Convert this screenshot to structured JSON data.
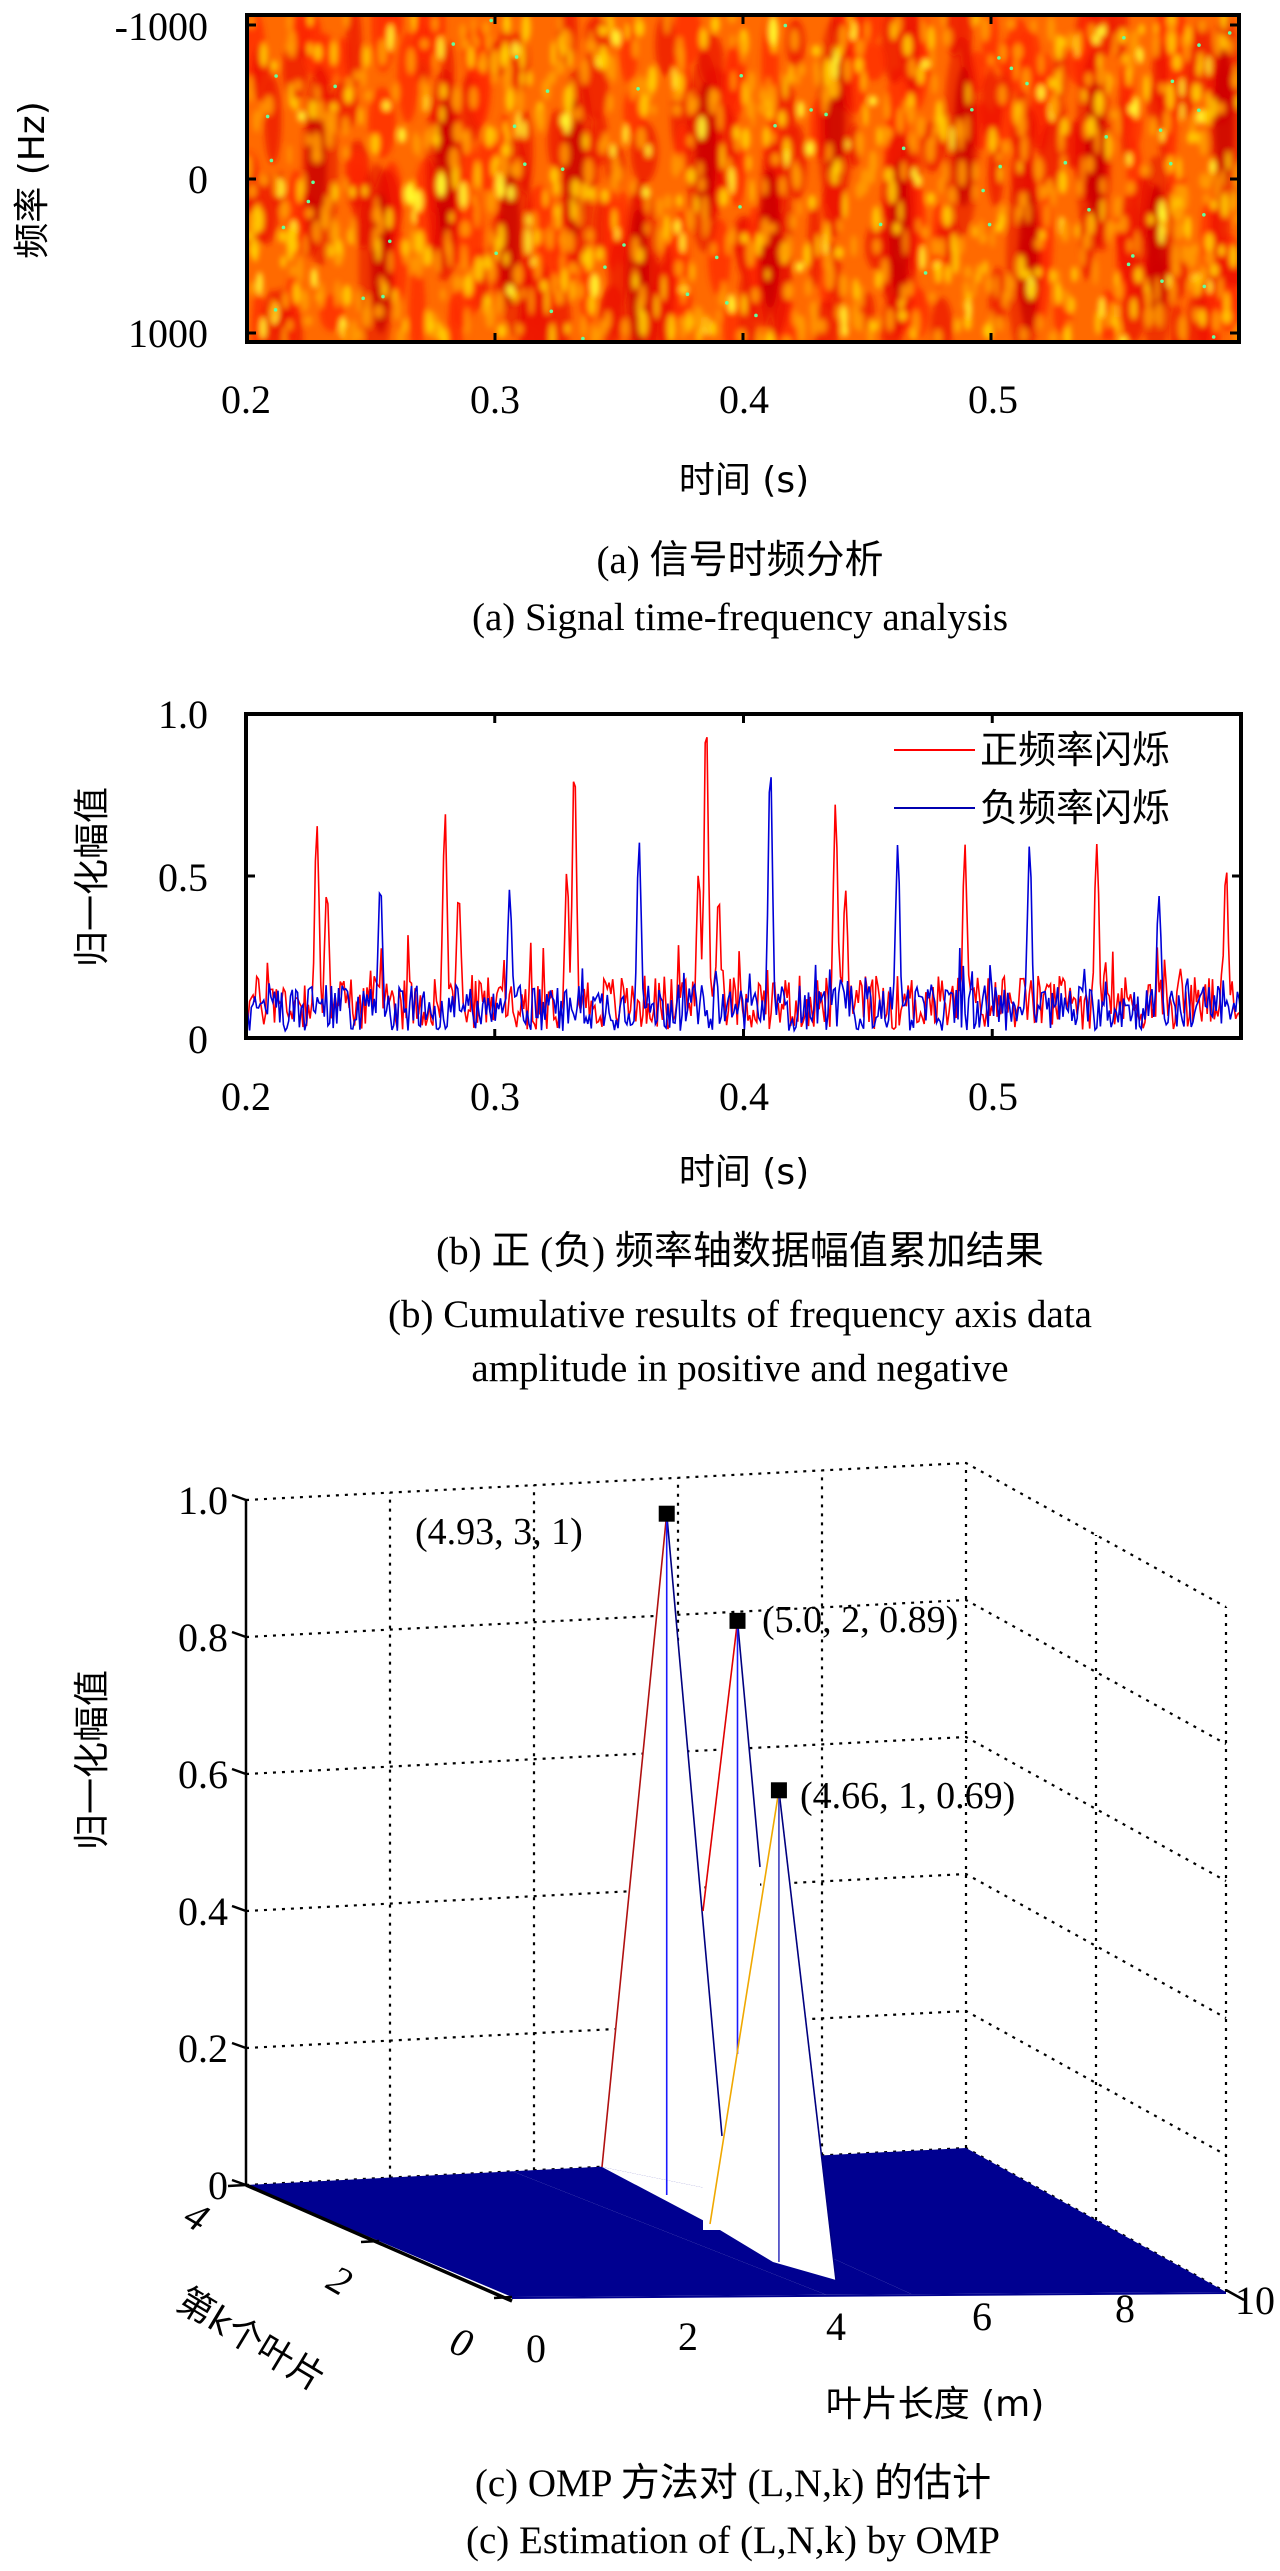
{
  "chart_data": [
    {
      "id": "a",
      "type": "heatmap",
      "title": "",
      "xlabel": "时间 (s)",
      "ylabel": "频率 (Hz)",
      "xlim": [
        0.2,
        0.6
      ],
      "ylim": [
        -1000,
        1000
      ],
      "x_ticks": [
        "0.2",
        "0.3",
        "0.4",
        "0.5"
      ],
      "x_tick_values": [
        0.2,
        0.3,
        0.4,
        0.5
      ],
      "y_ticks": [
        "-1000",
        "0",
        "1000"
      ],
      "y_tick_values": [
        -1000,
        0,
        1000
      ],
      "y_reversed": true,
      "colormap": [
        "#a00000",
        "#e00000",
        "#ff3000",
        "#ff7a00",
        "#ffc000",
        "#ffff20",
        "#60ffa0"
      ],
      "dark_time_bands": [
        0.228,
        0.254,
        0.28,
        0.306,
        0.332,
        0.358,
        0.385,
        0.411,
        0.437,
        0.463,
        0.489,
        0.515,
        0.542,
        0.567,
        0.594
      ],
      "caption_cn": "(a) 信号时频分析",
      "caption_en": "(a) Signal time-frequency analysis"
    },
    {
      "id": "b",
      "type": "line",
      "xlabel": "时间 (s)",
      "ylabel": "归一化幅值",
      "xlim": [
        0.2,
        0.6
      ],
      "ylim": [
        0,
        1.0
      ],
      "x_ticks": [
        "0.2",
        "0.3",
        "0.4",
        "0.5"
      ],
      "x_tick_values": [
        0.2,
        0.3,
        0.4,
        0.5
      ],
      "y_ticks": [
        "0",
        "0.5",
        "1.0"
      ],
      "y_tick_values": [
        0,
        0.5,
        1.0
      ],
      "legend_position": "top-right",
      "series": [
        {
          "name": "正频率闪烁",
          "color": "#ff0000",
          "peaks": [
            [
              0.2285,
              0.66
            ],
            [
              0.2325,
              0.46
            ],
            [
              0.28,
              0.7
            ],
            [
              0.2855,
              0.45
            ],
            [
              0.329,
              0.52
            ],
            [
              0.332,
              0.85
            ],
            [
              0.382,
              0.52
            ],
            [
              0.385,
              1.0
            ],
            [
              0.39,
              0.44
            ],
            [
              0.437,
              0.73
            ],
            [
              0.441,
              0.46
            ],
            [
              0.489,
              0.6
            ],
            [
              0.542,
              0.6
            ],
            [
              0.594,
              0.53
            ]
          ],
          "noise_level": 0.13
        },
        {
          "name": "负频率闪烁",
          "color": "#0000ff",
          "peaks": [
            [
              0.254,
              0.48
            ],
            [
              0.306,
              0.46
            ],
            [
              0.358,
              0.61
            ],
            [
              0.4108,
              0.85
            ],
            [
              0.462,
              0.6
            ],
            [
              0.515,
              0.6
            ],
            [
              0.567,
              0.44
            ]
          ],
          "noise_level": 0.11
        }
      ],
      "caption_cn": "(b) 正 (负) 频率轴数据幅值累加结果",
      "caption_en_line1": "(b) Cumulative results of frequency axis data",
      "caption_en_line2": "amplitude in positive and negative"
    },
    {
      "id": "c",
      "type": "surface3d",
      "xlabel": "叶片长度 (m)",
      "ylabel": "第k个叶片",
      "zlabel": "归一化幅值",
      "xlim": [
        0,
        10
      ],
      "ylim": [
        0,
        4
      ],
      "zlim": [
        0,
        1.0
      ],
      "x_ticks": [
        "0",
        "2",
        "4",
        "6",
        "8",
        "10"
      ],
      "y_ticks": [
        "0",
        "2",
        "4"
      ],
      "z_ticks": [
        "0",
        "0.2",
        "0.4",
        "0.6",
        "0.8",
        "1.0"
      ],
      "surface_color": "#000090",
      "peaks": [
        {
          "L": 4.93,
          "k": 3,
          "amp": 1.0,
          "label": "(4.93, 3, 1)"
        },
        {
          "L": 5.0,
          "k": 2,
          "amp": 0.89,
          "label": "(5.0, 2, 0.89)"
        },
        {
          "L": 4.66,
          "k": 1,
          "amp": 0.69,
          "label": "(4.66, 1, 0.69)"
        }
      ],
      "caption_cn": "(c) OMP 方法对 (L,N,k) 的估计",
      "caption_en": "(c) Estimation of (L,N,k) by OMP"
    }
  ]
}
